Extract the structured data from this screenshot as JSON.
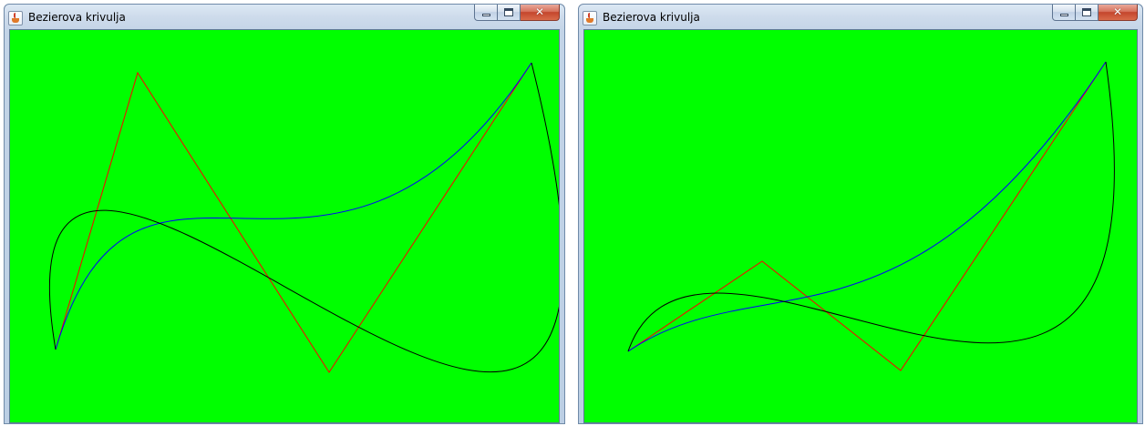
{
  "windows": [
    {
      "title": "Bezierova krivulja",
      "icon": "java-cup-icon",
      "canvas_background": "#00ff00",
      "curves": [
        {
          "role": "control-polygon",
          "type": "polyline",
          "color": "#ff0000",
          "points": [
            [
              50,
              351
            ],
            [
              140,
              47
            ],
            [
              350,
              376
            ],
            [
              572,
              36
            ]
          ]
        },
        {
          "role": "bezier-curve",
          "type": "cubic",
          "color": "#0000ff",
          "points": [
            [
              50,
              351
            ],
            [
              140,
              47
            ],
            [
              350,
              376
            ],
            [
              572,
              36
            ]
          ]
        },
        {
          "role": "interpolating-curve",
          "type": "cubic",
          "color": "#000000",
          "points": [
            [
              50,
              351
            ],
            [
              -38,
              -169
            ],
            [
              782,
              874
            ],
            [
              572,
              36
            ]
          ]
        }
      ]
    },
    {
      "title": "Bezierova krivulja",
      "icon": "java-cup-icon",
      "canvas_background": "#00ff00",
      "curves": [
        {
          "role": "control-polygon",
          "type": "polyline",
          "color": "#ff0000",
          "points": [
            [
              48,
              353
            ],
            [
              195,
              254
            ],
            [
              347,
              374
            ],
            [
              572,
              35
            ]
          ]
        },
        {
          "role": "bezier-curve",
          "type": "cubic",
          "color": "#0000ff",
          "points": [
            [
              48,
              353
            ],
            [
              195,
              254
            ],
            [
              347,
              374
            ],
            [
              572,
              35
            ]
          ]
        },
        {
          "role": "interpolating-curve",
          "type": "cubic",
          "color": "#000000",
          "points": [
            [
              48,
              353
            ],
            [
              129,
              120
            ],
            [
              658,
              646
            ],
            [
              572,
              35
            ]
          ]
        }
      ]
    }
  ]
}
